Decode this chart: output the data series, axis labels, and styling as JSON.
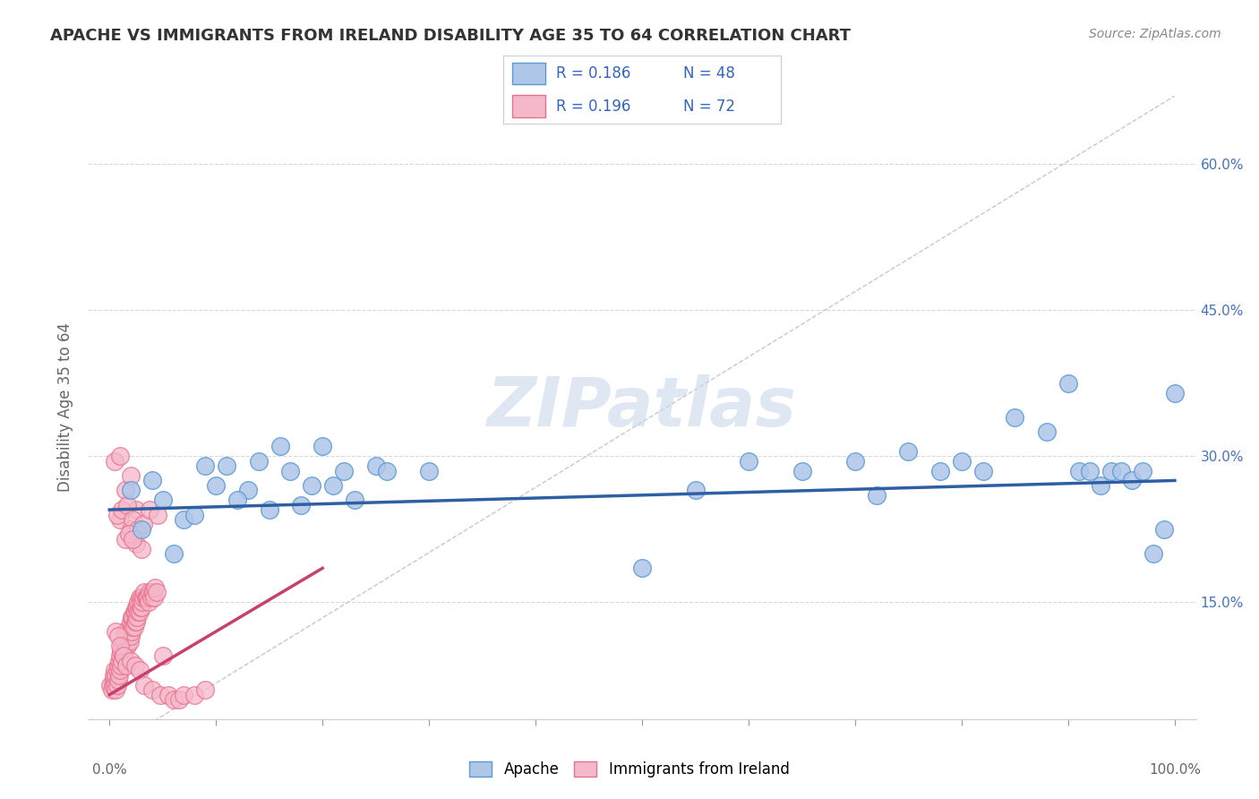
{
  "title": "APACHE VS IMMIGRANTS FROM IRELAND DISABILITY AGE 35 TO 64 CORRELATION CHART",
  "source": "Source: ZipAtlas.com",
  "ylabel": "Disability Age 35 to 64",
  "xlim": [
    -0.02,
    1.02
  ],
  "ylim": [
    0.03,
    0.67
  ],
  "yticks": [
    0.15,
    0.3,
    0.45,
    0.6
  ],
  "yticklabels": [
    "15.0%",
    "30.0%",
    "45.0%",
    "60.0%"
  ],
  "xtick_positions": [
    0.0,
    0.1,
    0.2,
    0.3,
    0.4,
    0.5,
    0.6,
    0.7,
    0.8,
    0.9,
    1.0
  ],
  "xleft_label": "0.0%",
  "xright_label": "100.0%",
  "legend_r1": "R = 0.186",
  "legend_n1": "N = 48",
  "legend_r2": "R = 0.196",
  "legend_n2": "N = 72",
  "apache_color": "#aec6e8",
  "ireland_color": "#f5b8cb",
  "apache_edge": "#5b9bd5",
  "ireland_edge": "#e8718a",
  "trend_blue": "#2e5fa3",
  "trend_pink": "#c94070",
  "ref_line_color": "#c8c8c8",
  "background_color": "#ffffff",
  "grid_color": "#d8d8d8",
  "apache_x": [
    0.02,
    0.05,
    0.07,
    0.09,
    0.1,
    0.11,
    0.13,
    0.14,
    0.15,
    0.16,
    0.17,
    0.18,
    0.2,
    0.21,
    0.22,
    0.25,
    0.3,
    0.6,
    0.65,
    0.7,
    0.72,
    0.75,
    0.78,
    0.8,
    0.82,
    0.85,
    0.88,
    0.9,
    0.91,
    0.92,
    0.93,
    0.94,
    0.95,
    0.96,
    0.97,
    0.98,
    0.99,
    1.0,
    0.03,
    0.04,
    0.06,
    0.08,
    0.12,
    0.19,
    0.23,
    0.26,
    0.5,
    0.55
  ],
  "apache_y": [
    0.265,
    0.255,
    0.235,
    0.29,
    0.27,
    0.29,
    0.265,
    0.295,
    0.245,
    0.31,
    0.285,
    0.25,
    0.31,
    0.27,
    0.285,
    0.29,
    0.285,
    0.295,
    0.285,
    0.295,
    0.26,
    0.305,
    0.285,
    0.295,
    0.285,
    0.34,
    0.325,
    0.375,
    0.285,
    0.285,
    0.27,
    0.285,
    0.285,
    0.275,
    0.285,
    0.2,
    0.225,
    0.365,
    0.225,
    0.275,
    0.2,
    0.24,
    0.255,
    0.27,
    0.255,
    0.285,
    0.185,
    0.265
  ],
  "ireland_x": [
    0.001,
    0.002,
    0.003,
    0.004,
    0.004,
    0.005,
    0.005,
    0.006,
    0.006,
    0.007,
    0.007,
    0.008,
    0.008,
    0.009,
    0.009,
    0.01,
    0.01,
    0.011,
    0.011,
    0.012,
    0.012,
    0.013,
    0.013,
    0.014,
    0.014,
    0.015,
    0.015,
    0.016,
    0.016,
    0.017,
    0.017,
    0.018,
    0.018,
    0.019,
    0.019,
    0.02,
    0.02,
    0.021,
    0.021,
    0.022,
    0.022,
    0.023,
    0.023,
    0.024,
    0.024,
    0.025,
    0.025,
    0.026,
    0.026,
    0.027,
    0.027,
    0.028,
    0.028,
    0.029,
    0.029,
    0.03,
    0.03,
    0.031,
    0.032,
    0.033,
    0.034,
    0.035,
    0.036,
    0.037,
    0.038,
    0.039,
    0.04,
    0.041,
    0.042,
    0.043,
    0.044,
    0.05
  ],
  "ireland_y": [
    0.065,
    0.06,
    0.065,
    0.07,
    0.075,
    0.065,
    0.08,
    0.06,
    0.075,
    0.065,
    0.08,
    0.07,
    0.085,
    0.075,
    0.09,
    0.08,
    0.095,
    0.085,
    0.1,
    0.09,
    0.105,
    0.095,
    0.11,
    0.1,
    0.115,
    0.105,
    0.12,
    0.11,
    0.115,
    0.105,
    0.12,
    0.115,
    0.125,
    0.11,
    0.12,
    0.115,
    0.13,
    0.12,
    0.135,
    0.125,
    0.135,
    0.125,
    0.14,
    0.13,
    0.14,
    0.13,
    0.145,
    0.135,
    0.145,
    0.14,
    0.15,
    0.14,
    0.155,
    0.145,
    0.15,
    0.145,
    0.155,
    0.15,
    0.155,
    0.16,
    0.155,
    0.155,
    0.155,
    0.15,
    0.16,
    0.155,
    0.16,
    0.16,
    0.155,
    0.165,
    0.16,
    0.095
  ],
  "ireland_extra_x": [
    0.005,
    0.01,
    0.015,
    0.02,
    0.025,
    0.01,
    0.015,
    0.02,
    0.025,
    0.03,
    0.007,
    0.012,
    0.017,
    0.022,
    0.027,
    0.032,
    0.038,
    0.045,
    0.018,
    0.022,
    0.006,
    0.008,
    0.01,
    0.013,
    0.016,
    0.02,
    0.024,
    0.028,
    0.033,
    0.04,
    0.048,
    0.055,
    0.06,
    0.065,
    0.07,
    0.08,
    0.09
  ],
  "ireland_extra_y": [
    0.295,
    0.3,
    0.265,
    0.28,
    0.245,
    0.235,
    0.215,
    0.225,
    0.21,
    0.205,
    0.24,
    0.245,
    0.25,
    0.235,
    0.225,
    0.23,
    0.245,
    0.24,
    0.22,
    0.215,
    0.12,
    0.115,
    0.105,
    0.095,
    0.085,
    0.09,
    0.085,
    0.08,
    0.065,
    0.06,
    0.055,
    0.055,
    0.05,
    0.05,
    0.055,
    0.055,
    0.06
  ],
  "apache_trend_x": [
    0.0,
    1.0
  ],
  "apache_trend_y": [
    0.245,
    0.275
  ],
  "ireland_trend_x": [
    0.0,
    0.2
  ],
  "ireland_trend_y": [
    0.055,
    0.185
  ],
  "ref_line_x": [
    0.0,
    1.0
  ],
  "ref_line_y": [
    0.0,
    0.67
  ]
}
